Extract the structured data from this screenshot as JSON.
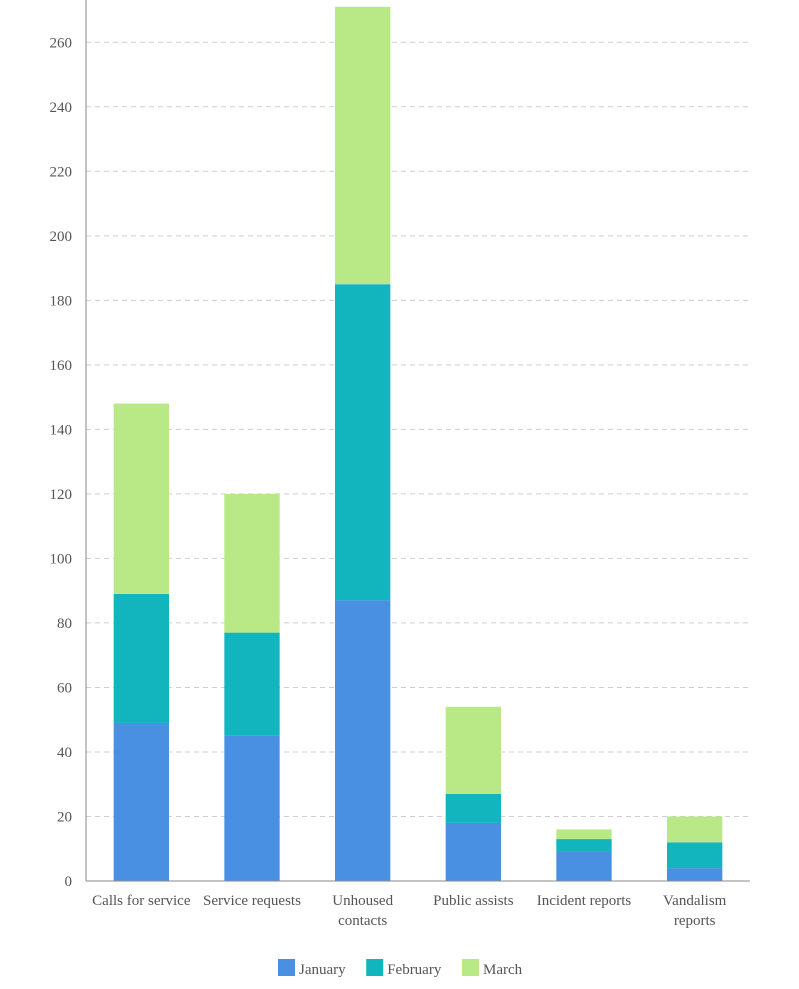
{
  "chart_data": {
    "type": "bar",
    "stacked": true,
    "categories": [
      [
        "Calls for service"
      ],
      [
        "Service requests"
      ],
      [
        "Unhoused",
        "contacts"
      ],
      [
        "Public assists"
      ],
      [
        "Incident reports"
      ],
      [
        "Vandalism",
        "reports"
      ]
    ],
    "series": [
      {
        "name": "January",
        "color": "#4a90e2",
        "values": [
          49,
          45,
          87,
          18,
          9,
          4
        ]
      },
      {
        "name": "February",
        "color": "#12b5be",
        "values": [
          40,
          32,
          98,
          9,
          4,
          8
        ]
      },
      {
        "name": "March",
        "color": "#b8e986",
        "values": [
          59,
          43,
          86,
          27,
          3,
          8
        ]
      }
    ],
    "ylim": [
      0,
      270
    ],
    "yticks": [
      0,
      20,
      40,
      60,
      80,
      100,
      120,
      140,
      160,
      180,
      200,
      220,
      240,
      260
    ],
    "grid": true,
    "legend": "bottom-center",
    "title": "",
    "xlabel": "",
    "ylabel": ""
  }
}
